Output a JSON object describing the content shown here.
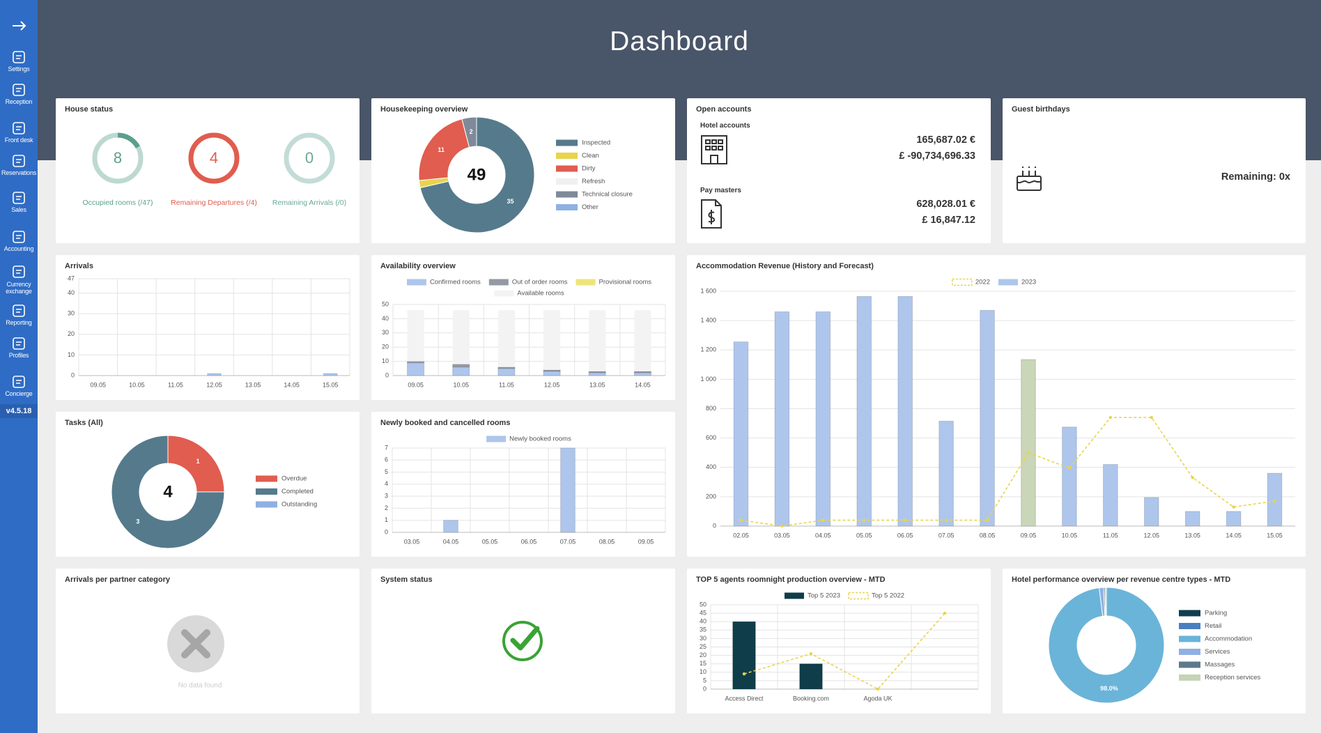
{
  "sidebar": {
    "items": [
      "Settings",
      "Reception",
      "Front desk",
      "Reservations",
      "Sales",
      "Accounting",
      "Currency exchange",
      "Reporting",
      "Profiles",
      "Concierge"
    ],
    "version": "v4.5.18"
  },
  "header": {
    "title": "Dashboard"
  },
  "house_status": {
    "title": "House status",
    "gauges": [
      {
        "value": 8,
        "max": 47,
        "label": "Occupied rooms (/47)",
        "color": "#5b9f8d"
      },
      {
        "value": 4,
        "max": 4,
        "label": "Remaining Departures (/4)",
        "color": "#e05d4f"
      },
      {
        "value": 0,
        "max": 0,
        "label": "Remaining Arrivals (/0)",
        "color": "#6aa89a"
      }
    ]
  },
  "housekeeping": {
    "title": "Housekeeping overview",
    "chart_data": {
      "type": "donut",
      "total": 49,
      "categories": [
        "Inspected",
        "Clean",
        "Dirty",
        "Refresh",
        "Technical closure",
        "Other"
      ],
      "values": [
        35,
        1,
        11,
        0,
        2,
        0
      ],
      "colors": [
        "#557a8c",
        "#e8d44d",
        "#e05d4f",
        "#f0f0f0",
        "#7f8a99",
        "#8fb0e3"
      ]
    }
  },
  "open_accounts": {
    "title": "Open accounts",
    "groups": [
      {
        "label": "Hotel accounts",
        "amounts": [
          "165,687.02 €",
          "£ -90,734,696.33"
        ]
      },
      {
        "label": "Pay masters",
        "amounts": [
          "628,028.01 €",
          "£ 16,847.12"
        ]
      }
    ]
  },
  "guest_birthdays": {
    "title": "Guest birthdays",
    "remaining": "Remaining: 0x"
  },
  "arrivals": {
    "title": "Arrivals",
    "chart_data": {
      "type": "bar",
      "categories": [
        "09.05",
        "10.05",
        "11.05",
        "12.05",
        "13.05",
        "14.05",
        "15.05"
      ],
      "values": [
        0,
        0,
        0,
        1,
        0,
        0,
        1
      ],
      "color": "#aec6ec",
      "ylim": [
        0,
        47
      ],
      "yticks": [
        0,
        10,
        20,
        30,
        40,
        47
      ],
      "grid": true
    }
  },
  "availability": {
    "title": "Availability overview",
    "chart_data": {
      "type": "stacked_bar",
      "categories": [
        "09.05",
        "10.05",
        "11.05",
        "12.05",
        "13.05",
        "14.05"
      ],
      "series": [
        {
          "name": "Confirmed rooms",
          "color": "#aec6ec",
          "values": [
            9,
            6,
            5,
            3,
            2,
            2
          ]
        },
        {
          "name": "Out of order rooms",
          "color": "#939aa5",
          "values": [
            1,
            2,
            1,
            1,
            1,
            1
          ]
        },
        {
          "name": "Provisional rooms",
          "color": "#ede57a",
          "values": [
            0,
            0,
            0,
            0,
            0,
            0
          ]
        },
        {
          "name": "Available rooms",
          "color": "#f3f3f3",
          "values": [
            36,
            38,
            40,
            42,
            43,
            43
          ]
        }
      ],
      "ylim": [
        0,
        50
      ],
      "yticks": [
        0,
        10,
        20,
        30,
        40,
        50
      ],
      "grid": true
    }
  },
  "accommodation_revenue": {
    "title": "Accommodation Revenue (History and Forecast)",
    "chart_data": {
      "type": "combo",
      "categories": [
        "02.05",
        "03.05",
        "04.05",
        "05.05",
        "06.05",
        "07.05",
        "08.05",
        "09.05",
        "10.05",
        "11.05",
        "12.05",
        "13.05",
        "14.05",
        "15.05"
      ],
      "series": [
        {
          "name": "2022",
          "type": "line",
          "color": "#e8d44d",
          "values": [
            40,
            0,
            40,
            40,
            40,
            40,
            40,
            500,
            395,
            740,
            740,
            330,
            130,
            170
          ]
        },
        {
          "name": "2023",
          "type": "bar",
          "color": "#aec6ec",
          "colors": [
            "#aec6ec",
            "#aec6ec",
            "#aec6ec",
            "#aec6ec",
            "#aec6ec",
            "#aec6ec",
            "#aec6ec",
            "#c9d6b7",
            "#aec6ec",
            "#aec6ec",
            "#aec6ec",
            "#aec6ec",
            "#aec6ec",
            "#aec6ec"
          ],
          "values": [
            1255,
            1460,
            1460,
            1565,
            1565,
            715,
            1470,
            1135,
            675,
            420,
            195,
            100,
            100,
            360
          ]
        }
      ],
      "ylim": [
        0,
        1600
      ],
      "yticks": [
        0,
        200,
        400,
        600,
        800,
        {
          "value": 1000,
          "label": "1 000"
        },
        {
          "value": 1200,
          "label": "1 200"
        },
        {
          "value": 1400,
          "label": "1 400"
        },
        {
          "value": 1600,
          "label": "1 600"
        }
      ],
      "grid": true
    }
  },
  "tasks": {
    "title": "Tasks (All)",
    "chart_data": {
      "type": "donut",
      "total": 4,
      "categories": [
        "Overdue",
        "Completed",
        "Outstanding"
      ],
      "values": [
        1,
        3,
        0
      ],
      "colors": [
        "#e05d4f",
        "#557a8c",
        "#8fb0e3"
      ]
    }
  },
  "newly_booked": {
    "title": "Newly booked and cancelled rooms",
    "chart_data": {
      "type": "bar",
      "categories": [
        "03.05",
        "04.05",
        "05.05",
        "06.05",
        "07.05",
        "08.05",
        "09.05"
      ],
      "series": [
        {
          "name": "Newly booked rooms",
          "color": "#aec6ec",
          "values": [
            0,
            1,
            0,
            0,
            7,
            0,
            0
          ]
        }
      ],
      "ylim": [
        0,
        7
      ],
      "yticks": [
        0,
        1,
        2,
        3,
        4,
        5,
        6,
        7
      ],
      "grid": true
    }
  },
  "partner_arrivals": {
    "title": "Arrivals per partner category",
    "empty": "No data found"
  },
  "system_status": {
    "title": "System status"
  },
  "top_agents": {
    "title": "TOP 5 agents roomnight production overview - MTD",
    "chart_data": {
      "type": "combo",
      "categories": [
        "Access Direct",
        "Booking.com",
        "Agoda UK",
        null
      ],
      "series": [
        {
          "name": "Top 5 2023",
          "type": "bar",
          "color": "#0f3d4a",
          "values": [
            40,
            15,
            0,
            0
          ]
        },
        {
          "name": "Top 5 2022",
          "type": "line",
          "color": "#e8d44d",
          "values": [
            9,
            21,
            0,
            45
          ]
        }
      ],
      "ylim": [
        0,
        50
      ],
      "yticks": [
        0,
        5,
        10,
        15,
        20,
        25,
        30,
        35,
        40,
        45,
        50
      ],
      "grid": true
    }
  },
  "hotel_performance": {
    "title": "Hotel performance overview per revenue centre types - MTD",
    "chart_data": {
      "type": "donut",
      "categories": [
        "Parking",
        "Retail",
        "Accommodation",
        "Services",
        "Massages",
        "Reception services"
      ],
      "values": [
        0,
        0,
        98,
        1.2,
        0.4,
        0.4
      ],
      "value_labels": [
        null,
        null,
        "98.0%",
        null,
        null,
        null
      ],
      "colors": [
        "#0f3d4d",
        "#4a7fc1",
        "#6ab4d9",
        "#8fb0e3",
        "#5d7a8a",
        "#c5d4b5"
      ]
    }
  }
}
